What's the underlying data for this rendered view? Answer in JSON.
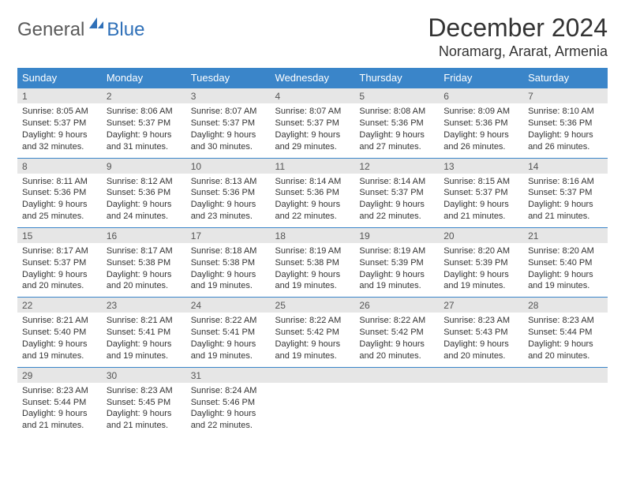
{
  "brand": {
    "part1": "General",
    "part2": "Blue"
  },
  "title": "December 2024",
  "location": "Noramarg, Ararat, Armenia",
  "colors": {
    "header_bg": "#3a85c9",
    "header_text": "#ffffff",
    "daynum_bg": "#e6e6e6",
    "daynum_text": "#555555",
    "rule": "#3a85c9",
    "body_text": "#333333",
    "logo_gray": "#5a5a5a",
    "logo_blue": "#2f70b8"
  },
  "weekdays": [
    "Sunday",
    "Monday",
    "Tuesday",
    "Wednesday",
    "Thursday",
    "Friday",
    "Saturday"
  ],
  "weeks": [
    [
      {
        "n": "1",
        "sr": "Sunrise: 8:05 AM",
        "ss": "Sunset: 5:37 PM",
        "d1": "Daylight: 9 hours",
        "d2": "and 32 minutes."
      },
      {
        "n": "2",
        "sr": "Sunrise: 8:06 AM",
        "ss": "Sunset: 5:37 PM",
        "d1": "Daylight: 9 hours",
        "d2": "and 31 minutes."
      },
      {
        "n": "3",
        "sr": "Sunrise: 8:07 AM",
        "ss": "Sunset: 5:37 PM",
        "d1": "Daylight: 9 hours",
        "d2": "and 30 minutes."
      },
      {
        "n": "4",
        "sr": "Sunrise: 8:07 AM",
        "ss": "Sunset: 5:37 PM",
        "d1": "Daylight: 9 hours",
        "d2": "and 29 minutes."
      },
      {
        "n": "5",
        "sr": "Sunrise: 8:08 AM",
        "ss": "Sunset: 5:36 PM",
        "d1": "Daylight: 9 hours",
        "d2": "and 27 minutes."
      },
      {
        "n": "6",
        "sr": "Sunrise: 8:09 AM",
        "ss": "Sunset: 5:36 PM",
        "d1": "Daylight: 9 hours",
        "d2": "and 26 minutes."
      },
      {
        "n": "7",
        "sr": "Sunrise: 8:10 AM",
        "ss": "Sunset: 5:36 PM",
        "d1": "Daylight: 9 hours",
        "d2": "and 26 minutes."
      }
    ],
    [
      {
        "n": "8",
        "sr": "Sunrise: 8:11 AM",
        "ss": "Sunset: 5:36 PM",
        "d1": "Daylight: 9 hours",
        "d2": "and 25 minutes."
      },
      {
        "n": "9",
        "sr": "Sunrise: 8:12 AM",
        "ss": "Sunset: 5:36 PM",
        "d1": "Daylight: 9 hours",
        "d2": "and 24 minutes."
      },
      {
        "n": "10",
        "sr": "Sunrise: 8:13 AM",
        "ss": "Sunset: 5:36 PM",
        "d1": "Daylight: 9 hours",
        "d2": "and 23 minutes."
      },
      {
        "n": "11",
        "sr": "Sunrise: 8:14 AM",
        "ss": "Sunset: 5:36 PM",
        "d1": "Daylight: 9 hours",
        "d2": "and 22 minutes."
      },
      {
        "n": "12",
        "sr": "Sunrise: 8:14 AM",
        "ss": "Sunset: 5:37 PM",
        "d1": "Daylight: 9 hours",
        "d2": "and 22 minutes."
      },
      {
        "n": "13",
        "sr": "Sunrise: 8:15 AM",
        "ss": "Sunset: 5:37 PM",
        "d1": "Daylight: 9 hours",
        "d2": "and 21 minutes."
      },
      {
        "n": "14",
        "sr": "Sunrise: 8:16 AM",
        "ss": "Sunset: 5:37 PM",
        "d1": "Daylight: 9 hours",
        "d2": "and 21 minutes."
      }
    ],
    [
      {
        "n": "15",
        "sr": "Sunrise: 8:17 AM",
        "ss": "Sunset: 5:37 PM",
        "d1": "Daylight: 9 hours",
        "d2": "and 20 minutes."
      },
      {
        "n": "16",
        "sr": "Sunrise: 8:17 AM",
        "ss": "Sunset: 5:38 PM",
        "d1": "Daylight: 9 hours",
        "d2": "and 20 minutes."
      },
      {
        "n": "17",
        "sr": "Sunrise: 8:18 AM",
        "ss": "Sunset: 5:38 PM",
        "d1": "Daylight: 9 hours",
        "d2": "and 19 minutes."
      },
      {
        "n": "18",
        "sr": "Sunrise: 8:19 AM",
        "ss": "Sunset: 5:38 PM",
        "d1": "Daylight: 9 hours",
        "d2": "and 19 minutes."
      },
      {
        "n": "19",
        "sr": "Sunrise: 8:19 AM",
        "ss": "Sunset: 5:39 PM",
        "d1": "Daylight: 9 hours",
        "d2": "and 19 minutes."
      },
      {
        "n": "20",
        "sr": "Sunrise: 8:20 AM",
        "ss": "Sunset: 5:39 PM",
        "d1": "Daylight: 9 hours",
        "d2": "and 19 minutes."
      },
      {
        "n": "21",
        "sr": "Sunrise: 8:20 AM",
        "ss": "Sunset: 5:40 PM",
        "d1": "Daylight: 9 hours",
        "d2": "and 19 minutes."
      }
    ],
    [
      {
        "n": "22",
        "sr": "Sunrise: 8:21 AM",
        "ss": "Sunset: 5:40 PM",
        "d1": "Daylight: 9 hours",
        "d2": "and 19 minutes."
      },
      {
        "n": "23",
        "sr": "Sunrise: 8:21 AM",
        "ss": "Sunset: 5:41 PM",
        "d1": "Daylight: 9 hours",
        "d2": "and 19 minutes."
      },
      {
        "n": "24",
        "sr": "Sunrise: 8:22 AM",
        "ss": "Sunset: 5:41 PM",
        "d1": "Daylight: 9 hours",
        "d2": "and 19 minutes."
      },
      {
        "n": "25",
        "sr": "Sunrise: 8:22 AM",
        "ss": "Sunset: 5:42 PM",
        "d1": "Daylight: 9 hours",
        "d2": "and 19 minutes."
      },
      {
        "n": "26",
        "sr": "Sunrise: 8:22 AM",
        "ss": "Sunset: 5:42 PM",
        "d1": "Daylight: 9 hours",
        "d2": "and 20 minutes."
      },
      {
        "n": "27",
        "sr": "Sunrise: 8:23 AM",
        "ss": "Sunset: 5:43 PM",
        "d1": "Daylight: 9 hours",
        "d2": "and 20 minutes."
      },
      {
        "n": "28",
        "sr": "Sunrise: 8:23 AM",
        "ss": "Sunset: 5:44 PM",
        "d1": "Daylight: 9 hours",
        "d2": "and 20 minutes."
      }
    ],
    [
      {
        "n": "29",
        "sr": "Sunrise: 8:23 AM",
        "ss": "Sunset: 5:44 PM",
        "d1": "Daylight: 9 hours",
        "d2": "and 21 minutes."
      },
      {
        "n": "30",
        "sr": "Sunrise: 8:23 AM",
        "ss": "Sunset: 5:45 PM",
        "d1": "Daylight: 9 hours",
        "d2": "and 21 minutes."
      },
      {
        "n": "31",
        "sr": "Sunrise: 8:24 AM",
        "ss": "Sunset: 5:46 PM",
        "d1": "Daylight: 9 hours",
        "d2": "and 22 minutes."
      },
      null,
      null,
      null,
      null
    ]
  ]
}
